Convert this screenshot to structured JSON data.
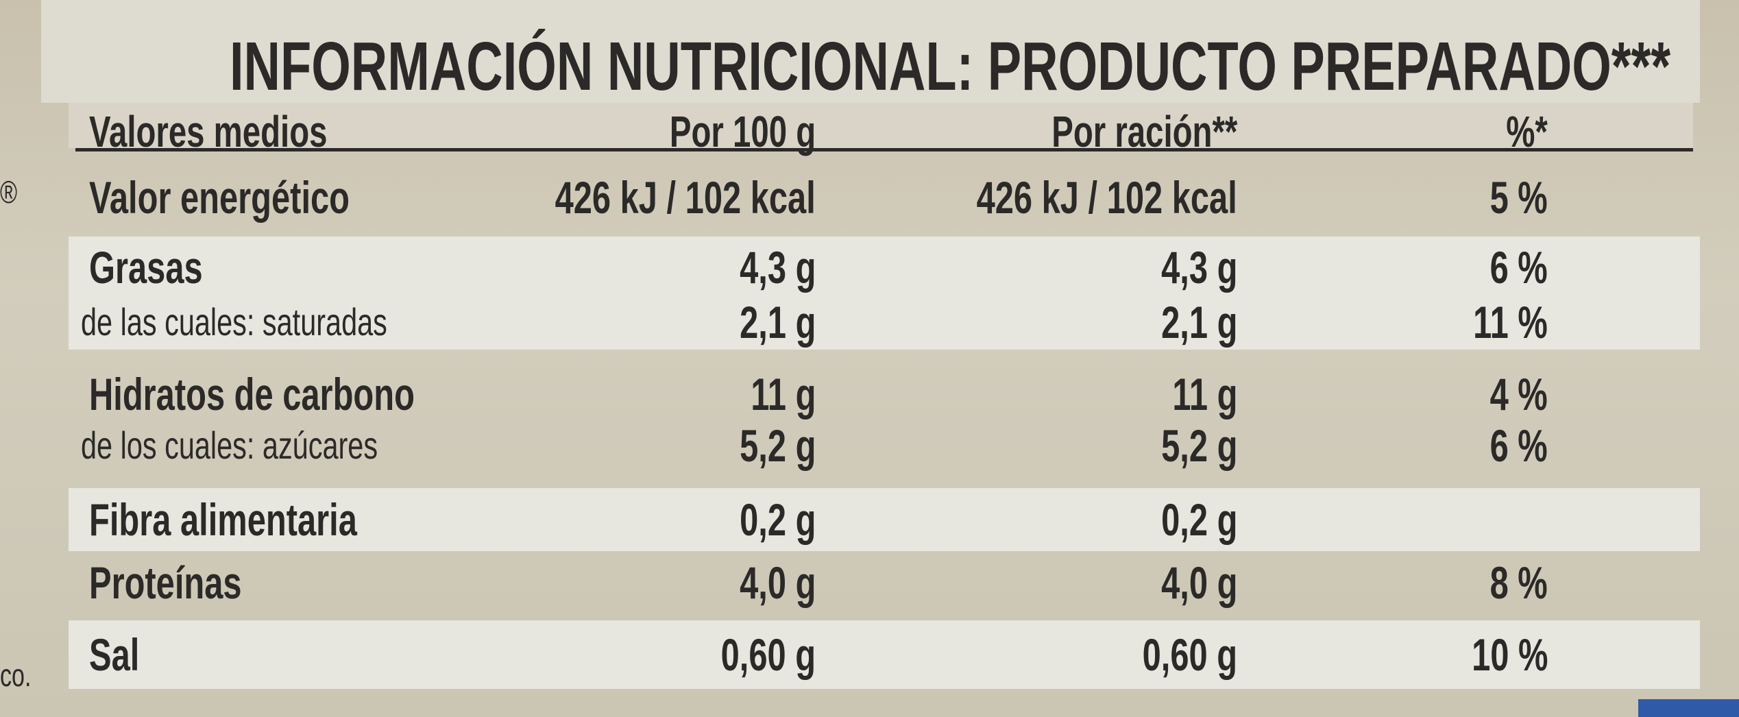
{
  "title": "INFORMACIÓN NUTRICIONAL: PRODUCTO PREPARADO***",
  "table": {
    "header": [
      "Valores medios",
      "Por 100 g",
      "Por ración**",
      "%*"
    ],
    "rows": [
      {
        "label": "Valor energético",
        "per_100g": "426 kJ / 102 kcal",
        "per_serving": "426 kJ / 102 kcal",
        "percent": "5 %"
      },
      {
        "label": "Grasas",
        "per_100g": "4,3 g",
        "per_serving": "4,3 g",
        "percent": "6 %"
      },
      {
        "label": "de las cuales: saturadas",
        "per_100g": "2,1 g",
        "per_serving": "2,1 g",
        "percent": "11 %"
      },
      {
        "label": "Hidratos de carbono",
        "per_100g": "11 g",
        "per_serving": "11 g",
        "percent": "4 %"
      },
      {
        "label": "de los cuales: azúcares",
        "per_100g": "5,2 g",
        "per_serving": "5,2 g",
        "percent": "6 %"
      },
      {
        "label": "Fibra alimentaria",
        "per_100g": "0,2 g",
        "per_serving": "0,2 g"
      },
      {
        "label": "Proteínas",
        "per_100g": "4,0 g",
        "per_serving": "4,0 g",
        "percent": "8 %"
      },
      {
        "label": "Sal",
        "per_100g": "0,60 g",
        "per_serving": "0,60 g",
        "percent": "10 %"
      }
    ]
  },
  "edge_marks": [
    "®",
    "co."
  ]
}
